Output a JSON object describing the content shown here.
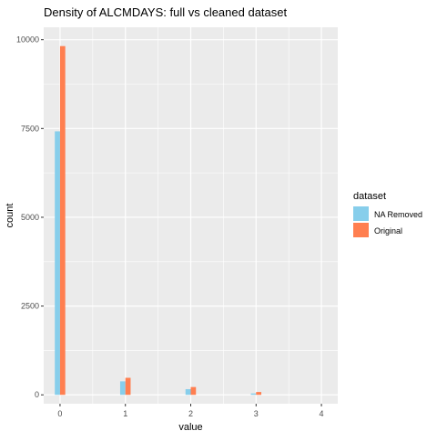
{
  "chart_data": {
    "type": "bar",
    "title": "Density of ALCMDAYS: full vs cleaned dataset",
    "xlabel": "value",
    "ylabel": "count",
    "x_ticks": [
      "0",
      "1",
      "2",
      "3",
      "4"
    ],
    "y_ticks": [
      "0",
      "2500",
      "5000",
      "7500",
      "10000"
    ],
    "xlim": [
      -0.25,
      4.25
    ],
    "ylim": [
      -250,
      10350
    ],
    "grid": true,
    "legend": {
      "title": "dataset",
      "placement": "right"
    },
    "x": [
      0,
      1,
      2,
      3
    ],
    "series": [
      {
        "name": "NA Removed",
        "color": "#87CEEB",
        "values": [
          7420,
          380,
          160,
          40
        ]
      },
      {
        "name": "Original",
        "color": "#FF7F50",
        "values": [
          9820,
          480,
          220,
          80
        ]
      }
    ]
  },
  "colors": {
    "panel_background": "#EBEBEB",
    "grid_major": "#FFFFFF",
    "axis_text": "#4D4D4D"
  }
}
